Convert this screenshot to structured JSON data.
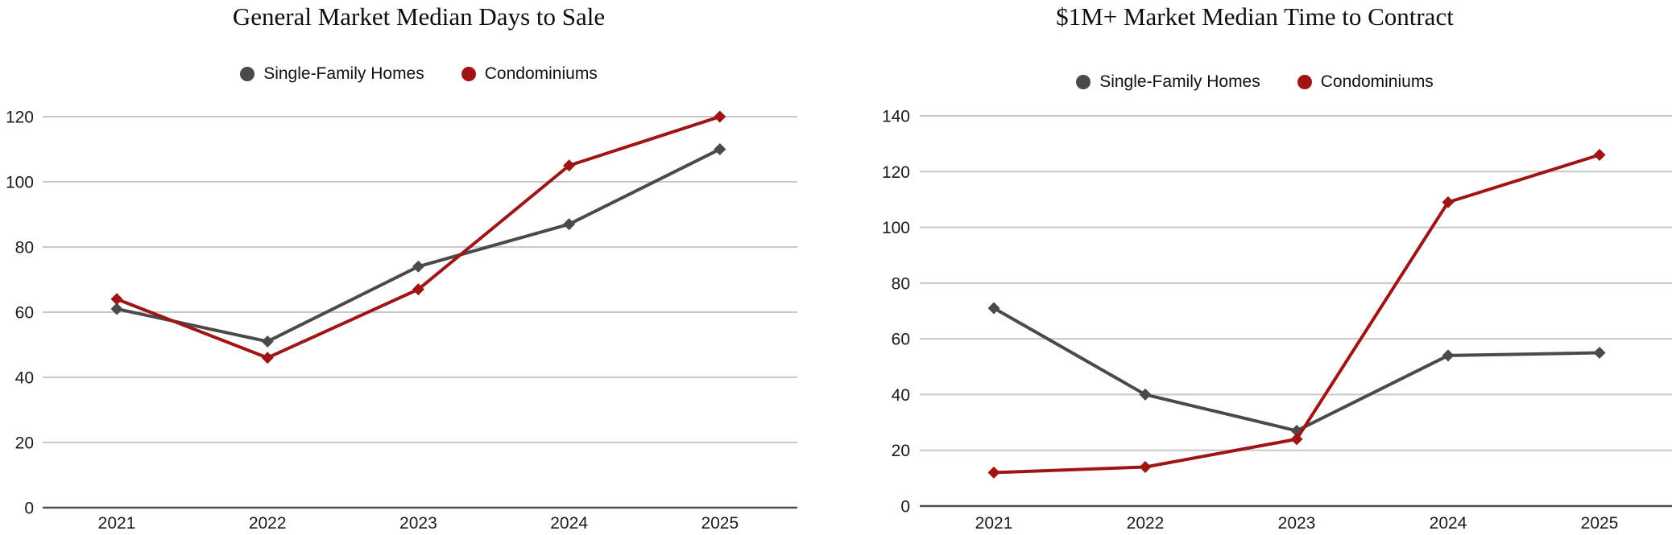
{
  "colors": {
    "background": "#ffffff",
    "grid": "#c8c8c8",
    "axis": "#4f4f4f",
    "tick_text": "#1a1a1a",
    "title_text": "#0e0e0e",
    "single_family": "#4a4a4a",
    "condominiums": "#a01414"
  },
  "chart_data": [
    {
      "type": "line",
      "title": "General Market Median Days to Sale",
      "categories": [
        "2021",
        "2022",
        "2023",
        "2024",
        "2025"
      ],
      "series": [
        {
          "name": "Single-Family Homes",
          "color": "#4a4a4a",
          "values": [
            61,
            51,
            74,
            87,
            110
          ]
        },
        {
          "name": "Condominiums",
          "color": "#a01414",
          "values": [
            64,
            46,
            67,
            105,
            120
          ]
        }
      ],
      "xlabel": "",
      "ylabel": "",
      "ylim": [
        0,
        120
      ],
      "ytick_step": 20,
      "grid": "horizontal",
      "legend_position": "top",
      "marker": "diamond"
    },
    {
      "type": "line",
      "title": "$1M+ Market Median Time to Contract",
      "categories": [
        "2021",
        "2022",
        "2023",
        "2024",
        "2025"
      ],
      "series": [
        {
          "name": "Single-Family Homes",
          "color": "#4a4a4a",
          "values": [
            71,
            40,
            27,
            54,
            55
          ]
        },
        {
          "name": "Condominiums",
          "color": "#a01414",
          "values": [
            12,
            14,
            24,
            109,
            126
          ]
        }
      ],
      "xlabel": "",
      "ylabel": "",
      "ylim": [
        0,
        140
      ],
      "ytick_step": 20,
      "grid": "horizontal",
      "legend_position": "top",
      "marker": "diamond"
    }
  ]
}
